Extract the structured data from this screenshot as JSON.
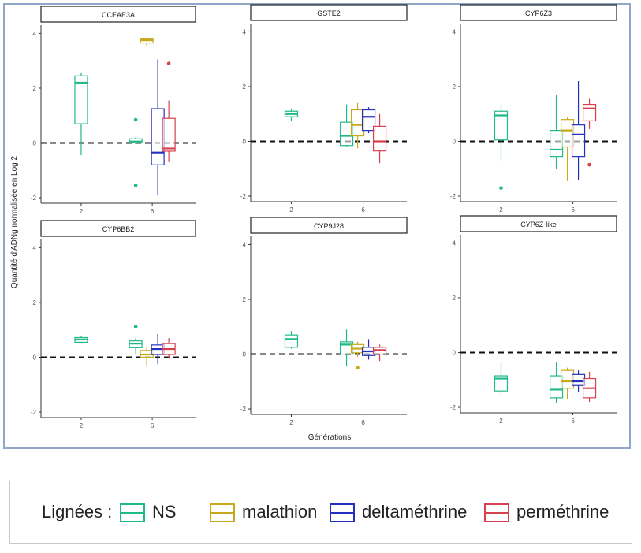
{
  "chart_data": {
    "type": "boxplot",
    "ylabel": "Quantité d'ADNg normalisée en Log 2",
    "xlabel": "Générations",
    "x_categories": [
      "2",
      "6"
    ],
    "y_ticks": [
      -2,
      0,
      2,
      4
    ],
    "ylim": [
      -2.2,
      4.3
    ],
    "reference_line": 0,
    "series_colors": {
      "NS": "#1fb98a",
      "malathion": "#c9a91c",
      "deltaméthrine": "#2530c0",
      "perméthrine": "#d6404f"
    },
    "panels": [
      {
        "name": "CCEAE3A",
        "boxes": [
          {
            "series": "NS",
            "generation": "2",
            "min": -0.45,
            "q1": 0.7,
            "median": 2.2,
            "q3": 2.45,
            "max": 2.55,
            "outliers": []
          },
          {
            "series": "NS",
            "generation": "6",
            "min": -0.05,
            "q1": 0.0,
            "median": 0.05,
            "q3": 0.15,
            "max": 0.2,
            "outliers": [
              0.85,
              -1.55
            ]
          },
          {
            "series": "malathion",
            "generation": "6",
            "min": 3.55,
            "q1": 3.65,
            "median": 3.75,
            "q3": 3.82,
            "max": 3.85,
            "outliers": []
          },
          {
            "series": "deltaméthrine",
            "generation": "6",
            "min": -1.9,
            "q1": -0.8,
            "median": -0.35,
            "q3": 1.25,
            "max": 3.05,
            "outliers": []
          },
          {
            "series": "perméthrine",
            "generation": "6",
            "min": -0.7,
            "q1": -0.3,
            "median": -0.2,
            "q3": 0.9,
            "max": 1.55,
            "outliers": [
              2.9
            ]
          }
        ]
      },
      {
        "name": "GSTE2",
        "boxes": [
          {
            "series": "NS",
            "generation": "2",
            "min": 0.75,
            "q1": 0.9,
            "median": 1.0,
            "q3": 1.1,
            "max": 1.2,
            "outliers": []
          },
          {
            "series": "NS",
            "generation": "6",
            "min": -0.2,
            "q1": -0.15,
            "median": 0.2,
            "q3": 0.7,
            "max": 1.35,
            "outliers": []
          },
          {
            "series": "malathion",
            "generation": "6",
            "min": -0.25,
            "q1": 0.2,
            "median": 0.6,
            "q3": 1.15,
            "max": 1.4,
            "outliers": []
          },
          {
            "series": "deltaméthrine",
            "generation": "6",
            "min": 0.3,
            "q1": 0.4,
            "median": 0.9,
            "q3": 1.15,
            "max": 1.25,
            "outliers": []
          },
          {
            "series": "perméthrine",
            "generation": "6",
            "min": -0.8,
            "q1": -0.35,
            "median": 0.0,
            "q3": 0.55,
            "max": 1.0,
            "outliers": []
          }
        ]
      },
      {
        "name": "CYP6Z3",
        "boxes": [
          {
            "series": "NS",
            "generation": "2",
            "min": -0.7,
            "q1": 0.05,
            "median": 0.95,
            "q3": 1.1,
            "max": 1.35,
            "outliers": [
              -1.7
            ]
          },
          {
            "series": "NS",
            "generation": "6",
            "min": -1.0,
            "q1": -0.55,
            "median": -0.3,
            "q3": 0.4,
            "max": 1.7,
            "outliers": []
          },
          {
            "series": "malathion",
            "generation": "6",
            "min": -1.45,
            "q1": -0.2,
            "median": 0.4,
            "q3": 0.8,
            "max": 0.9,
            "outliers": []
          },
          {
            "series": "deltaméthrine",
            "generation": "6",
            "min": -1.4,
            "q1": -0.55,
            "median": 0.25,
            "q3": 0.6,
            "max": 2.2,
            "outliers": []
          },
          {
            "series": "perméthrine",
            "generation": "6",
            "min": 0.45,
            "q1": 0.75,
            "median": 1.2,
            "q3": 1.35,
            "max": 1.55,
            "outliers": [
              -0.85
            ]
          }
        ]
      },
      {
        "name": "CYP6BB2",
        "boxes": [
          {
            "series": "NS",
            "generation": "2",
            "min": 0.5,
            "q1": 0.55,
            "median": 0.65,
            "q3": 0.72,
            "max": 0.78,
            "outliers": []
          },
          {
            "series": "NS",
            "generation": "6",
            "min": 0.1,
            "q1": 0.35,
            "median": 0.5,
            "q3": 0.6,
            "max": 0.7,
            "outliers": [
              1.12
            ]
          },
          {
            "series": "malathion",
            "generation": "6",
            "min": -0.3,
            "q1": 0.0,
            "median": 0.1,
            "q3": 0.25,
            "max": 0.35,
            "outliers": []
          },
          {
            "series": "deltaméthrine",
            "generation": "6",
            "min": -0.25,
            "q1": 0.1,
            "median": 0.3,
            "q3": 0.45,
            "max": 0.85,
            "outliers": []
          },
          {
            "series": "perméthrine",
            "generation": "6",
            "min": -0.05,
            "q1": 0.1,
            "median": 0.3,
            "q3": 0.5,
            "max": 0.7,
            "outliers": []
          }
        ]
      },
      {
        "name": "CYP9J28",
        "boxes": [
          {
            "series": "NS",
            "generation": "2",
            "min": 0.2,
            "q1": 0.25,
            "median": 0.55,
            "q3": 0.7,
            "max": 0.85,
            "outliers": []
          },
          {
            "series": "NS",
            "generation": "6",
            "min": -0.45,
            "q1": 0.0,
            "median": 0.35,
            "q3": 0.45,
            "max": 0.9,
            "outliers": []
          },
          {
            "series": "malathion",
            "generation": "6",
            "min": -0.1,
            "q1": 0.05,
            "median": 0.2,
            "q3": 0.35,
            "max": 0.45,
            "outliers": [
              -0.5
            ]
          },
          {
            "series": "deltaméthrine",
            "generation": "6",
            "min": -0.2,
            "q1": -0.05,
            "median": 0.1,
            "q3": 0.25,
            "max": 0.55,
            "outliers": []
          },
          {
            "series": "perméthrine",
            "generation": "6",
            "min": -0.25,
            "q1": 0.0,
            "median": 0.15,
            "q3": 0.25,
            "max": 0.35,
            "outliers": []
          }
        ]
      },
      {
        "name": "CYP6Z-like",
        "boxes": [
          {
            "series": "NS",
            "generation": "2",
            "min": -1.5,
            "q1": -1.4,
            "median": -0.95,
            "q3": -0.85,
            "max": -0.35,
            "outliers": []
          },
          {
            "series": "NS",
            "generation": "6",
            "min": -1.85,
            "q1": -1.65,
            "median": -1.35,
            "q3": -0.85,
            "max": -0.35,
            "outliers": []
          },
          {
            "series": "malathion",
            "generation": "6",
            "min": -1.7,
            "q1": -1.3,
            "median": -1.05,
            "q3": -0.65,
            "max": -0.55,
            "outliers": []
          },
          {
            "series": "deltaméthrine",
            "generation": "6",
            "min": -1.45,
            "q1": -1.2,
            "median": -1.05,
            "q3": -0.8,
            "max": -0.65,
            "outliers": []
          },
          {
            "series": "perméthrine",
            "generation": "6",
            "min": -1.8,
            "q1": -1.65,
            "median": -1.3,
            "q3": -0.95,
            "max": -0.7,
            "outliers": []
          }
        ]
      }
    ]
  },
  "legend": {
    "title": "Lignées :",
    "items": [
      {
        "label": "NS",
        "color": "#1fb98a"
      },
      {
        "label": "malathion",
        "color": "#c9a91c"
      },
      {
        "label": "deltaméthrine",
        "color": "#2530c0"
      },
      {
        "label": "perméthrine",
        "color": "#d6404f"
      }
    ]
  }
}
